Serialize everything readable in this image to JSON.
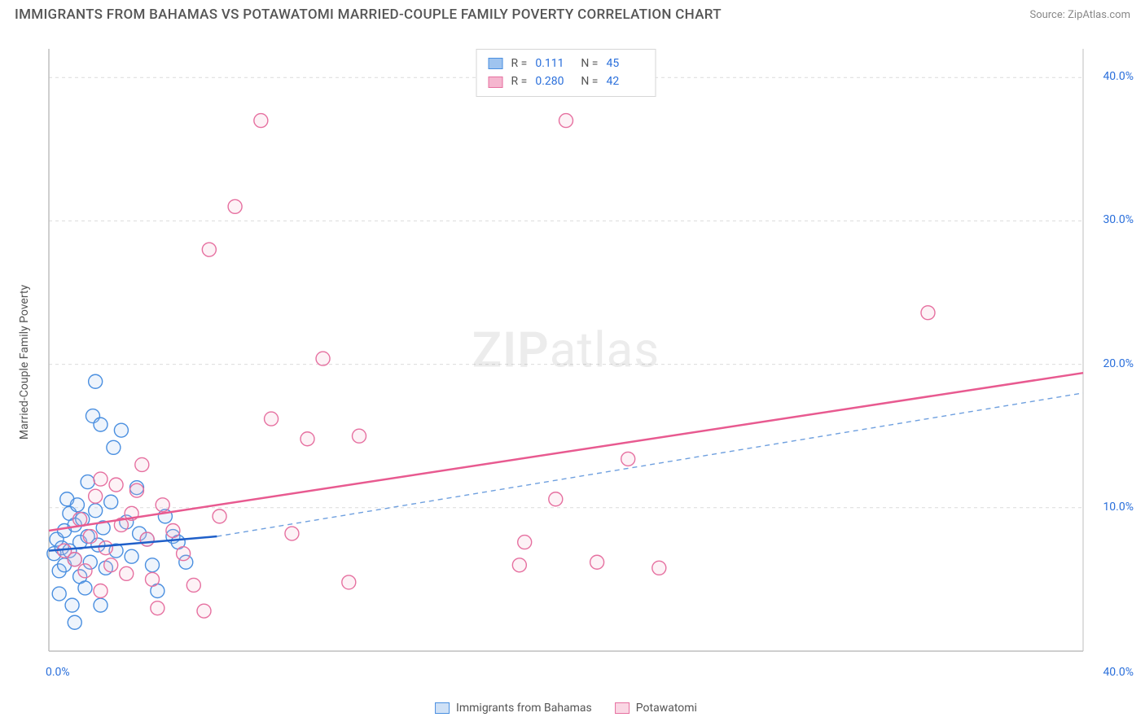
{
  "title": "IMMIGRANTS FROM BAHAMAS VS POTAWATOMI MARRIED-COUPLE FAMILY POVERTY CORRELATION CHART",
  "source": "Source: ZipAtlas.com",
  "y_axis_label": "Married-Couple Family Poverty",
  "watermark_zip": "ZIP",
  "watermark_atlas": "atlas",
  "chart": {
    "type": "scatter",
    "background_color": "#ffffff",
    "grid_color": "#dcdcdc",
    "axis_color": "#bfbfbf",
    "tick_label_color": "#2a6fdb",
    "xlim": [
      0,
      40
    ],
    "ylim": [
      0,
      42
    ],
    "xticks": [
      0,
      40
    ],
    "xtick_labels": [
      "0.0%",
      "40.0%"
    ],
    "yticks": [
      10,
      20,
      30,
      40
    ],
    "ytick_labels": [
      "10.0%",
      "20.0%",
      "30.0%",
      "40.0%"
    ],
    "marker_radius": 8.5,
    "marker_stroke_width": 1.4,
    "marker_fill_opacity": 0.18,
    "series": [
      {
        "name": "Immigrants from Bahamas",
        "color_stroke": "#4a8fe0",
        "color_fill": "#9fc4ef",
        "R": "0.111",
        "N": "45",
        "trend": {
          "x1": 0,
          "y1": 7.0,
          "x2": 6.5,
          "y2": 8.0,
          "dash_x2": 40,
          "dash_y2": 18.0,
          "width": 2.5
        },
        "points": [
          [
            0.2,
            6.8
          ],
          [
            0.3,
            7.8
          ],
          [
            0.4,
            5.6
          ],
          [
            0.5,
            7.2
          ],
          [
            0.6,
            8.4
          ],
          [
            0.6,
            6.0
          ],
          [
            0.7,
            10.6
          ],
          [
            0.8,
            9.6
          ],
          [
            0.8,
            7.0
          ],
          [
            0.9,
            3.2
          ],
          [
            1.0,
            8.8
          ],
          [
            1.0,
            6.4
          ],
          [
            1.1,
            10.2
          ],
          [
            1.2,
            5.2
          ],
          [
            1.2,
            7.6
          ],
          [
            1.3,
            9.2
          ],
          [
            1.4,
            4.4
          ],
          [
            1.5,
            11.8
          ],
          [
            1.5,
            8.0
          ],
          [
            1.6,
            6.2
          ],
          [
            1.7,
            16.4
          ],
          [
            1.8,
            18.8
          ],
          [
            1.8,
            9.8
          ],
          [
            1.9,
            7.4
          ],
          [
            2.0,
            15.8
          ],
          [
            2.1,
            8.6
          ],
          [
            2.2,
            5.8
          ],
          [
            2.4,
            10.4
          ],
          [
            2.5,
            14.2
          ],
          [
            2.6,
            7.0
          ],
          [
            2.8,
            15.4
          ],
          [
            3.0,
            9.0
          ],
          [
            3.2,
            6.6
          ],
          [
            3.4,
            11.4
          ],
          [
            3.5,
            8.2
          ],
          [
            3.8,
            7.8
          ],
          [
            4.0,
            6.0
          ],
          [
            4.2,
            4.2
          ],
          [
            4.5,
            9.4
          ],
          [
            4.8,
            8.0
          ],
          [
            5.0,
            7.6
          ],
          [
            5.3,
            6.2
          ],
          [
            1.0,
            2.0
          ],
          [
            0.4,
            4.0
          ],
          [
            2.0,
            3.2
          ]
        ]
      },
      {
        "name": "Potawatomi",
        "color_stroke": "#e670a0",
        "color_fill": "#f5b6cf",
        "R": "0.280",
        "N": "42",
        "trend": {
          "x1": 0,
          "y1": 8.4,
          "x2": 40,
          "y2": 19.4,
          "width": 2.5
        },
        "points": [
          [
            0.6,
            7.0
          ],
          [
            1.0,
            6.4
          ],
          [
            1.2,
            9.2
          ],
          [
            1.4,
            5.6
          ],
          [
            1.6,
            8.0
          ],
          [
            1.8,
            10.8
          ],
          [
            2.0,
            12.0
          ],
          [
            2.2,
            7.2
          ],
          [
            2.4,
            6.0
          ],
          [
            2.6,
            11.6
          ],
          [
            2.8,
            8.8
          ],
          [
            3.0,
            5.4
          ],
          [
            3.2,
            9.6
          ],
          [
            3.4,
            11.2
          ],
          [
            3.6,
            13.0
          ],
          [
            3.8,
            7.8
          ],
          [
            4.0,
            5.0
          ],
          [
            4.4,
            10.2
          ],
          [
            4.8,
            8.4
          ],
          [
            5.2,
            6.8
          ],
          [
            5.6,
            4.6
          ],
          [
            6.0,
            2.8
          ],
          [
            6.2,
            28.0
          ],
          [
            6.6,
            9.4
          ],
          [
            7.2,
            31.0
          ],
          [
            8.2,
            37.0
          ],
          [
            8.6,
            16.2
          ],
          [
            9.4,
            8.2
          ],
          [
            10.0,
            14.8
          ],
          [
            10.6,
            20.4
          ],
          [
            11.6,
            4.8
          ],
          [
            12.0,
            15.0
          ],
          [
            18.2,
            6.0
          ],
          [
            18.4,
            7.6
          ],
          [
            19.6,
            10.6
          ],
          [
            20.0,
            37.0
          ],
          [
            21.2,
            6.2
          ],
          [
            22.4,
            13.4
          ],
          [
            23.6,
            5.8
          ],
          [
            34.0,
            23.6
          ],
          [
            2.0,
            4.2
          ],
          [
            4.2,
            3.0
          ]
        ]
      }
    ]
  },
  "legend_bottom": [
    {
      "label": "Immigrants from Bahamas",
      "stroke": "#4a8fe0",
      "fill": "#cfe1f6"
    },
    {
      "label": "Potawatomi",
      "stroke": "#e670a0",
      "fill": "#fad7e4"
    }
  ]
}
